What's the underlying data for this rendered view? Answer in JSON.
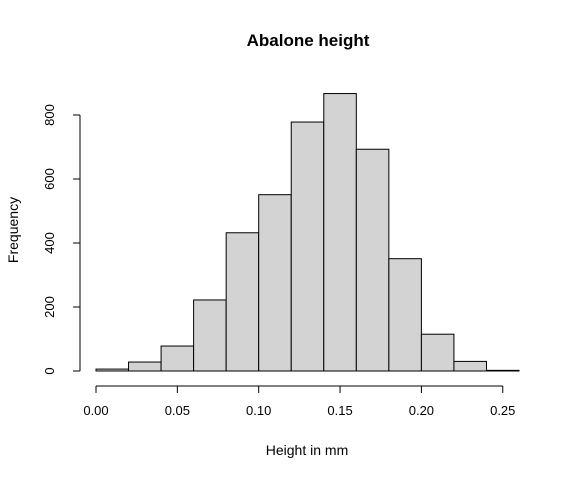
{
  "chart_data": {
    "type": "bar",
    "title": "Abalone height",
    "xlabel": "Height in mm",
    "ylabel": "Frequency",
    "bin_edges": [
      0.0,
      0.02,
      0.04,
      0.06,
      0.08,
      0.1,
      0.12,
      0.14,
      0.16,
      0.18,
      0.2,
      0.22,
      0.24,
      0.26
    ],
    "values": [
      6,
      28,
      78,
      222,
      432,
      551,
      778,
      867,
      693,
      351,
      115,
      30,
      2
    ],
    "xlim": [
      0,
      0.26
    ],
    "ylim": [
      0,
      870
    ],
    "x_ticks": [
      "0.00",
      "0.05",
      "0.10",
      "0.15",
      "0.20",
      "0.25"
    ],
    "y_ticks": [
      "0",
      "200",
      "400",
      "600",
      "800"
    ],
    "colors": {
      "bar_fill": "#d3d3d3",
      "bar_stroke": "#000000"
    },
    "grid": false,
    "legend": "none"
  }
}
